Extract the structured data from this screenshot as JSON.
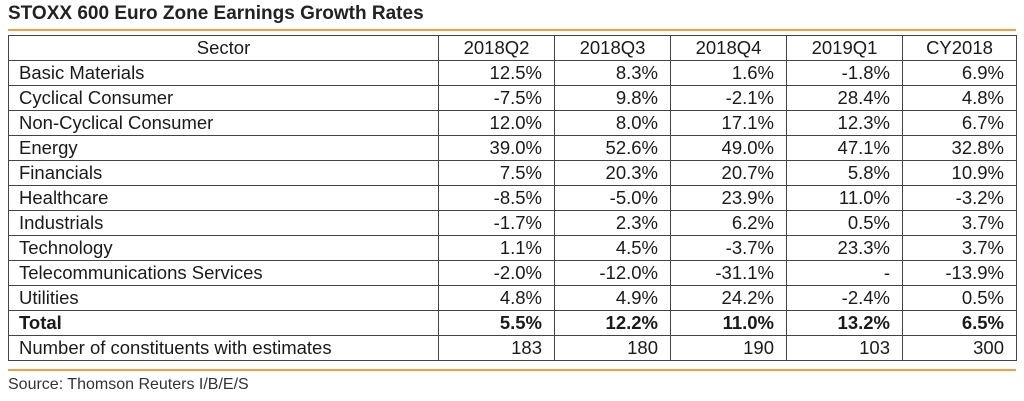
{
  "title": "STOXX 600 Euro Zone Earnings Growth Rates",
  "columns": [
    "Sector",
    "2018Q2",
    "2018Q3",
    "2018Q4",
    "2019Q1",
    "CY2018"
  ],
  "rows": [
    {
      "sector": "Basic Materials",
      "values": [
        "12.5%",
        "8.3%",
        "1.6%",
        "-1.8%",
        "6.9%"
      ]
    },
    {
      "sector": "Cyclical Consumer",
      "values": [
        "-7.5%",
        "9.8%",
        "-2.1%",
        "28.4%",
        "4.8%"
      ]
    },
    {
      "sector": "Non-Cyclical Consumer",
      "values": [
        "12.0%",
        "8.0%",
        "17.1%",
        "12.3%",
        "6.7%"
      ]
    },
    {
      "sector": "Energy",
      "values": [
        "39.0%",
        "52.6%",
        "49.0%",
        "47.1%",
        "32.8%"
      ]
    },
    {
      "sector": "Financials",
      "values": [
        "7.5%",
        "20.3%",
        "20.7%",
        "5.8%",
        "10.9%"
      ]
    },
    {
      "sector": "Healthcare",
      "values": [
        "-8.5%",
        "-5.0%",
        "23.9%",
        "11.0%",
        "-3.2%"
      ]
    },
    {
      "sector": "Industrials",
      "values": [
        "-1.7%",
        "2.3%",
        "6.2%",
        "0.5%",
        "3.7%"
      ]
    },
    {
      "sector": "Technology",
      "values": [
        "1.1%",
        "4.5%",
        "-3.7%",
        "23.3%",
        "3.7%"
      ]
    },
    {
      "sector": "Telecommunications Services",
      "values": [
        "-2.0%",
        "-12.0%",
        "-31.1%",
        "-",
        "-13.9%"
      ]
    },
    {
      "sector": "Utilities",
      "values": [
        "4.8%",
        "4.9%",
        "24.2%",
        "-2.4%",
        "0.5%"
      ]
    }
  ],
  "total": {
    "sector": "Total",
    "values": [
      "5.5%",
      "12.2%",
      "11.0%",
      "13.2%",
      "6.5%"
    ]
  },
  "constituents": {
    "sector": "Number of constituents with estimates",
    "values": [
      "183",
      "180",
      "190",
      "103",
      "300"
    ]
  },
  "source": "Source: Thomson Reuters I/B/E/S",
  "colors": {
    "accent_rule": "#f0a040",
    "border": "#444444"
  }
}
